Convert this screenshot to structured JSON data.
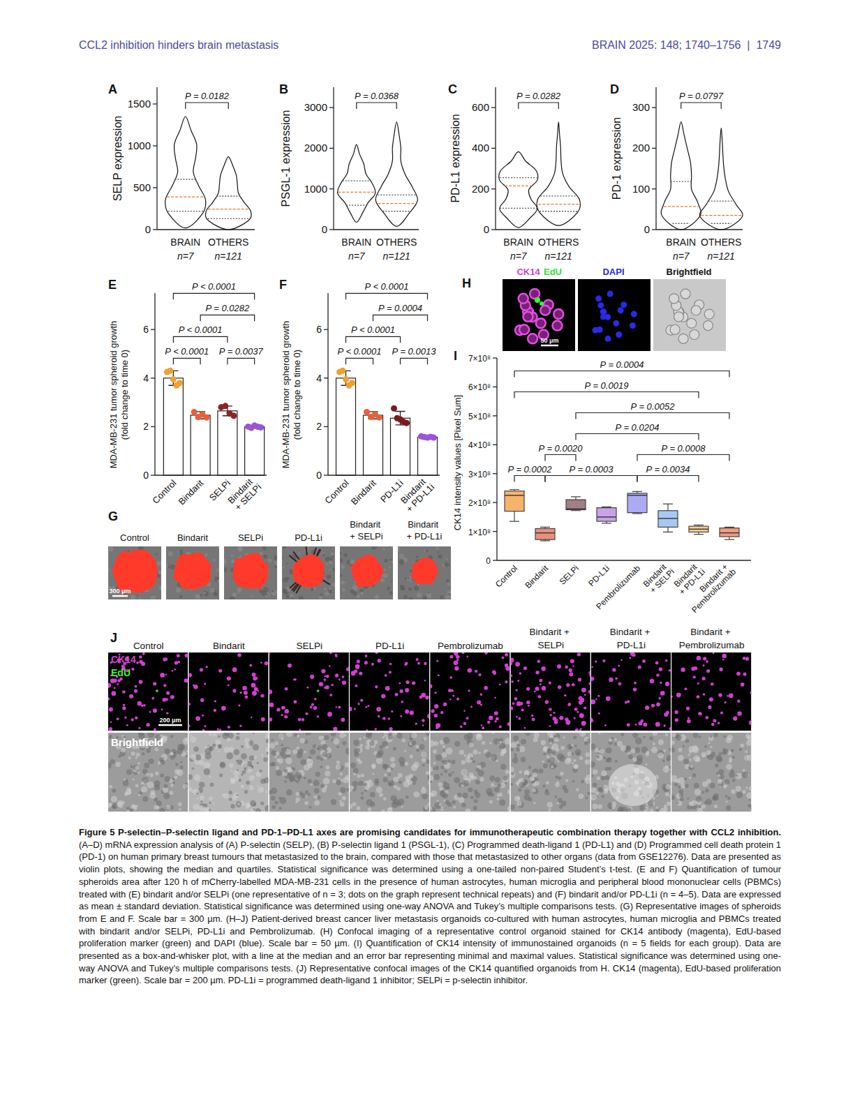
{
  "header": {
    "left": "CCL2 inhibition hinders brain metastasis",
    "right": "BRAIN 2025: 148; 1740–1756  |  1749"
  },
  "chart_data": [
    {
      "panel": "A",
      "type": "violin",
      "y_label": "SELP expression",
      "categories": [
        "BRAIN",
        "OTHERS"
      ],
      "n_labels": [
        "n=7",
        "n=121"
      ],
      "ylim": [
        0,
        1700
      ],
      "yticks": [
        0,
        500,
        1000,
        1500
      ],
      "groups": [
        {
          "min": 20,
          "q1": 220,
          "median": 390,
          "q3": 600,
          "max": 1350,
          "density": [
            0,
            0.75,
            0.9,
            0.6,
            0.35,
            0.45,
            0.5,
            0.25,
            0
          ]
        },
        {
          "min": 0,
          "q1": 130,
          "median": 245,
          "q3": 400,
          "max": 870,
          "density": [
            0,
            0.9,
            1,
            0.7,
            0.45,
            0.4,
            0.35,
            0.2,
            0
          ]
        }
      ],
      "comparisons": [
        {
          "from": 0,
          "to": 1,
          "label": "P = 0.0182"
        }
      ]
    },
    {
      "panel": "B",
      "type": "violin",
      "y_label": "PSGL-1 expression",
      "categories": [
        "BRAIN",
        "OTHERS"
      ],
      "n_labels": [
        "n=7",
        "n=121"
      ],
      "ylim": [
        0,
        3500
      ],
      "yticks": [
        0,
        1000,
        2000,
        3000
      ],
      "groups": [
        {
          "min": 180,
          "q1": 600,
          "median": 920,
          "q3": 1200,
          "max": 2090,
          "density": [
            0,
            0.3,
            0.55,
            0.9,
            0.75,
            0.45,
            0.35,
            0.15,
            0
          ]
        },
        {
          "min": 80,
          "q1": 450,
          "median": 640,
          "q3": 850,
          "max": 2650,
          "density": [
            0,
            0.6,
            1,
            0.75,
            0.4,
            0.2,
            0.2,
            0.12,
            0
          ]
        }
      ],
      "comparisons": [
        {
          "from": 0,
          "to": 1,
          "label": "P = 0.0368"
        }
      ]
    },
    {
      "panel": "C",
      "type": "violin",
      "y_label": "PD-L1 expression",
      "categories": [
        "BRAIN",
        "OTHERS"
      ],
      "n_labels": [
        "n=7",
        "n=121"
      ],
      "ylim": [
        0,
        700
      ],
      "yticks": [
        0,
        200,
        400,
        600
      ],
      "groups": [
        {
          "min": 10,
          "q1": 105,
          "median": 215,
          "q3": 255,
          "max": 383,
          "density": [
            0,
            0.55,
            0.9,
            0.6,
            0.5,
            0.9,
            0.85,
            0.35,
            0
          ]
        },
        {
          "min": 20,
          "q1": 90,
          "median": 125,
          "q3": 165,
          "max": 530,
          "density": [
            0,
            0.9,
            1,
            0.5,
            0.2,
            0.12,
            0.1,
            0.05,
            0
          ]
        }
      ],
      "comparisons": [
        {
          "from": 0,
          "to": 1,
          "label": "P = 0.0282"
        }
      ]
    },
    {
      "panel": "D",
      "type": "violin",
      "y_label": "PD-1 expression",
      "categories": [
        "BRAIN",
        "OTHERS"
      ],
      "n_labels": [
        "n=7",
        "n=121"
      ],
      "ylim": [
        0,
        350
      ],
      "yticks": [
        0,
        100,
        200,
        300
      ],
      "groups": [
        {
          "min": 0,
          "q1": 15,
          "median": 57,
          "q3": 118,
          "max": 265,
          "density": [
            0,
            0.9,
            0.8,
            0.5,
            0.5,
            0.45,
            0.3,
            0.15,
            0
          ]
        },
        {
          "min": 0,
          "q1": 15,
          "median": 35,
          "q3": 70,
          "max": 250,
          "density": [
            0,
            1,
            0.7,
            0.35,
            0.2,
            0.12,
            0.08,
            0.05,
            0
          ]
        }
      ],
      "comparisons": [
        {
          "from": 0,
          "to": 1,
          "label": "P = 0.0797"
        }
      ]
    },
    {
      "panel": "E",
      "type": "bar",
      "y_label": "MDA-MB-231 tumor spheroid growth",
      "y_sublabel": "(fold change to time 0)",
      "categories": [
        "Control",
        "Bindarit",
        "SELPi",
        "Bindarit + SELPi"
      ],
      "values": [
        4.0,
        2.47,
        2.65,
        2.0
      ],
      "errors": [
        0.3,
        0.15,
        0.2,
        0.06
      ],
      "points": [
        [
          4.25,
          4.3,
          3.95,
          3.7,
          3.8
        ],
        [
          2.6,
          2.4,
          2.5,
          2.38
        ],
        [
          2.8,
          2.85,
          2.55,
          2.45
        ],
        [
          2.0,
          1.95,
          2.05,
          2.0,
          1.97
        ]
      ],
      "colors": [
        "#f0a030",
        "#e8603a",
        "#8b2525",
        "#9a55d8"
      ],
      "ylim": [
        0,
        7.5
      ],
      "yticks": [
        0,
        2,
        4,
        6
      ],
      "comparisons": [
        {
          "from": 0,
          "to": 1,
          "label": "P < 0.0001"
        },
        {
          "from": 2,
          "to": 3,
          "label": "P = 0.0037"
        },
        {
          "from": 0,
          "to": 2,
          "label": "P < 0.0001"
        },
        {
          "from": 1,
          "to": 3,
          "label": "P = 0.0282"
        },
        {
          "from": 0,
          "to": 3,
          "label": "P < 0.0001"
        }
      ]
    },
    {
      "panel": "F",
      "type": "bar",
      "y_label": "MDA-MB-231 tumor spheroid growth",
      "y_sublabel": "(fold change to time 0)",
      "categories": [
        "Control",
        "Bindarit",
        "PD-L1i",
        "Bindarit + PD-L1i"
      ],
      "values": [
        4.0,
        2.47,
        2.35,
        1.57
      ],
      "errors": [
        0.3,
        0.15,
        0.28,
        0.04
      ],
      "points": [
        [
          4.25,
          4.3,
          3.95,
          3.7,
          3.8
        ],
        [
          2.6,
          2.4,
          2.5,
          2.38
        ],
        [
          2.75,
          2.35,
          2.3,
          2.2,
          2.15
        ],
        [
          1.6,
          1.57,
          1.55,
          1.58,
          1.55
        ]
      ],
      "colors": [
        "#f0a030",
        "#e8603a",
        "#7a1a20",
        "#9a55d8"
      ],
      "ylim": [
        0,
        7.5
      ],
      "yticks": [
        0,
        2,
        4,
        6
      ],
      "comparisons": [
        {
          "from": 0,
          "to": 1,
          "label": "P < 0.0001"
        },
        {
          "from": 2,
          "to": 3,
          "label": "P = 0.0013"
        },
        {
          "from": 0,
          "to": 2,
          "label": "P < 0.0001"
        },
        {
          "from": 1,
          "to": 3,
          "label": "P = 0.0004"
        },
        {
          "from": 0,
          "to": 3,
          "label": "P < 0.0001"
        }
      ]
    },
    {
      "panel": "I",
      "type": "box",
      "y_label": "CK14 intensity values [Pixel Sum]",
      "categories": [
        "Control",
        "Bindarit",
        "SELPi",
        "PD-L1i",
        "Pembrolizumab",
        "Bindarit + SELPi",
        "Bindarit + PD-L1i",
        "Bindarit + Pembrolizumab"
      ],
      "groups": [
        {
          "min": 135000000,
          "q1": 170000000,
          "median": 225000000,
          "q3": 240000000,
          "max": 245000000
        },
        {
          "min": 68000000,
          "q1": 72000000,
          "median": 95000000,
          "q3": 110000000,
          "max": 115000000
        },
        {
          "min": 172000000,
          "q1": 175000000,
          "median": 178000000,
          "q3": 210000000,
          "max": 220000000
        },
        {
          "min": 128000000,
          "q1": 135000000,
          "median": 150000000,
          "q3": 182000000,
          "max": 185000000
        },
        {
          "min": 162000000,
          "q1": 165000000,
          "median": 225000000,
          "q3": 232000000,
          "max": 238000000
        },
        {
          "min": 98000000,
          "q1": 115000000,
          "median": 145000000,
          "q3": 172000000,
          "max": 195000000
        },
        {
          "min": 90000000,
          "q1": 98000000,
          "median": 108000000,
          "q3": 118000000,
          "max": 122000000
        },
        {
          "min": 72000000,
          "q1": 82000000,
          "median": 95000000,
          "q3": 112000000,
          "max": 115000000
        }
      ],
      "colors": [
        "#f6b36b",
        "#e9907d",
        "#a27e85",
        "#c9a3e8",
        "#a9acf5",
        "#a8c8f4",
        "#f7cf8e",
        "#f29c85"
      ],
      "ylim": [
        0,
        700000000
      ],
      "yticks": [
        0,
        {
          "value": 100000000,
          "label": "1×10⁸"
        },
        {
          "value": 200000000,
          "label": "2×10⁸"
        },
        {
          "value": 300000000,
          "label": "3×10⁸"
        },
        {
          "value": 400000000,
          "label": "4×10⁸"
        },
        {
          "value": 500000000,
          "label": "5×10⁸"
        },
        {
          "value": 600000000,
          "label": "6×10⁸"
        },
        {
          "value": 700000000,
          "label": "7×10⁸"
        }
      ],
      "comparisons": [
        {
          "from": 0,
          "to": 1,
          "label": "P = 0.0002"
        },
        {
          "from": 1,
          "to": 4,
          "label": "P = 0.0003"
        },
        {
          "from": 4,
          "to": 6,
          "label": "P = 0.0034"
        },
        {
          "from": 1,
          "to": 2,
          "label": "P = 0.0020"
        },
        {
          "from": 4,
          "to": 7,
          "label": "P = 0.0008"
        },
        {
          "from": 2,
          "to": 6,
          "label": "P = 0.0204"
        },
        {
          "from": 2,
          "to": 7,
          "label": "P = 0.0052"
        },
        {
          "from": 0,
          "to": 6,
          "label": "P = 0.0019"
        },
        {
          "from": 0,
          "to": 7,
          "label": "P = 0.0004"
        }
      ]
    }
  ],
  "images": {
    "G": {
      "panel": "G",
      "columns": [
        "Control",
        "Bindarit",
        "SELPi",
        "PD-L1i",
        "Bindarit + SELPi",
        "Bindarit + PD-L1i"
      ],
      "scale_bar": "300 μm"
    },
    "H": {
      "panel": "H",
      "labels": [
        "CK14",
        "EdU",
        "DAPI",
        "Brightfield"
      ],
      "scale_bar": "50 μm"
    },
    "J": {
      "panel": "J",
      "columns": [
        "Control",
        "Bindarit",
        "SELPi",
        "PD-L1i",
        "Pembrolizumab",
        "Bindarit + SELPi",
        "Bindarit + PD-L1i",
        "Bindarit + Pembrolizumab"
      ],
      "channels": [
        "CK14",
        "EdU"
      ],
      "row_label": "Brightfield",
      "scale_bar": "200 μm"
    }
  },
  "caption": {
    "title": "Figure 5 P-selectin–P-selectin ligand and PD-1–PD-L1 axes are promising candidates for immunotherapeutic combination therapy together with CCL2 inhibition.",
    "body": "(A–D) mRNA expression analysis of (A) P-selectin (SELP), (B) P-selectin ligand 1 (PSGL-1), (C) Programmed death-ligand 1 (PD-L1) and (D) Programmed cell death protein 1 (PD-1) on human primary breast tumours that metastasized to the brain, compared with those that metastasized to other organs (data from GSE12276). Data are presented as violin plots, showing the median and quartiles. Statistical significance was determined using a one-tailed non-paired Student’s t-test. (E and F) Quantification of tumour spheroids area after 120 h of mCherry-labelled MDA-MB-231 cells in the presence of human astrocytes, human microglia and peripheral blood mononuclear cells (PBMCs) treated with (E) bindarit and/or SELPi (one representative of n = 3; dots on the graph represent technical repeats) and (F) bindarit and/or PD-L1i (n = 4–5). Data are expressed as mean ± standard deviation. Statistical significance was determined using one-way ANOVA and Tukey’s multiple comparisons tests. (G) Representative images of spheroids from E and F. Scale bar = 300 µm. (H–J) Patient-derived breast cancer liver metastasis organoids co-cultured with human astrocytes, human microglia and PBMCs treated with bindarit and/or SELPi, PD-L1i and Pembrolizumab. (H) Confocal imaging of a representative control organoid stained for CK14 antibody (magenta), EdU-based proliferation marker (green) and DAPI (blue). Scale bar = 50 µm. (I) Quantification of CK14 intensity of immunostained organoids (n = 5 fields for each group). Data are presented as a box-and-whisker plot, with a line at the median and an error bar representing minimal and maximal values. Statistical significance was determined using one-way ANOVA and Tukey’s multiple comparisons tests. (J) Representative confocal images of the CK14 quantified organoids from H. CK14 (magenta), EdU-based proliferation marker (green). Scale bar = 200 µm. PD-L1i = programmed death-ligand 1 inhibitor; SELPi = p-selectin inhibitor."
  }
}
